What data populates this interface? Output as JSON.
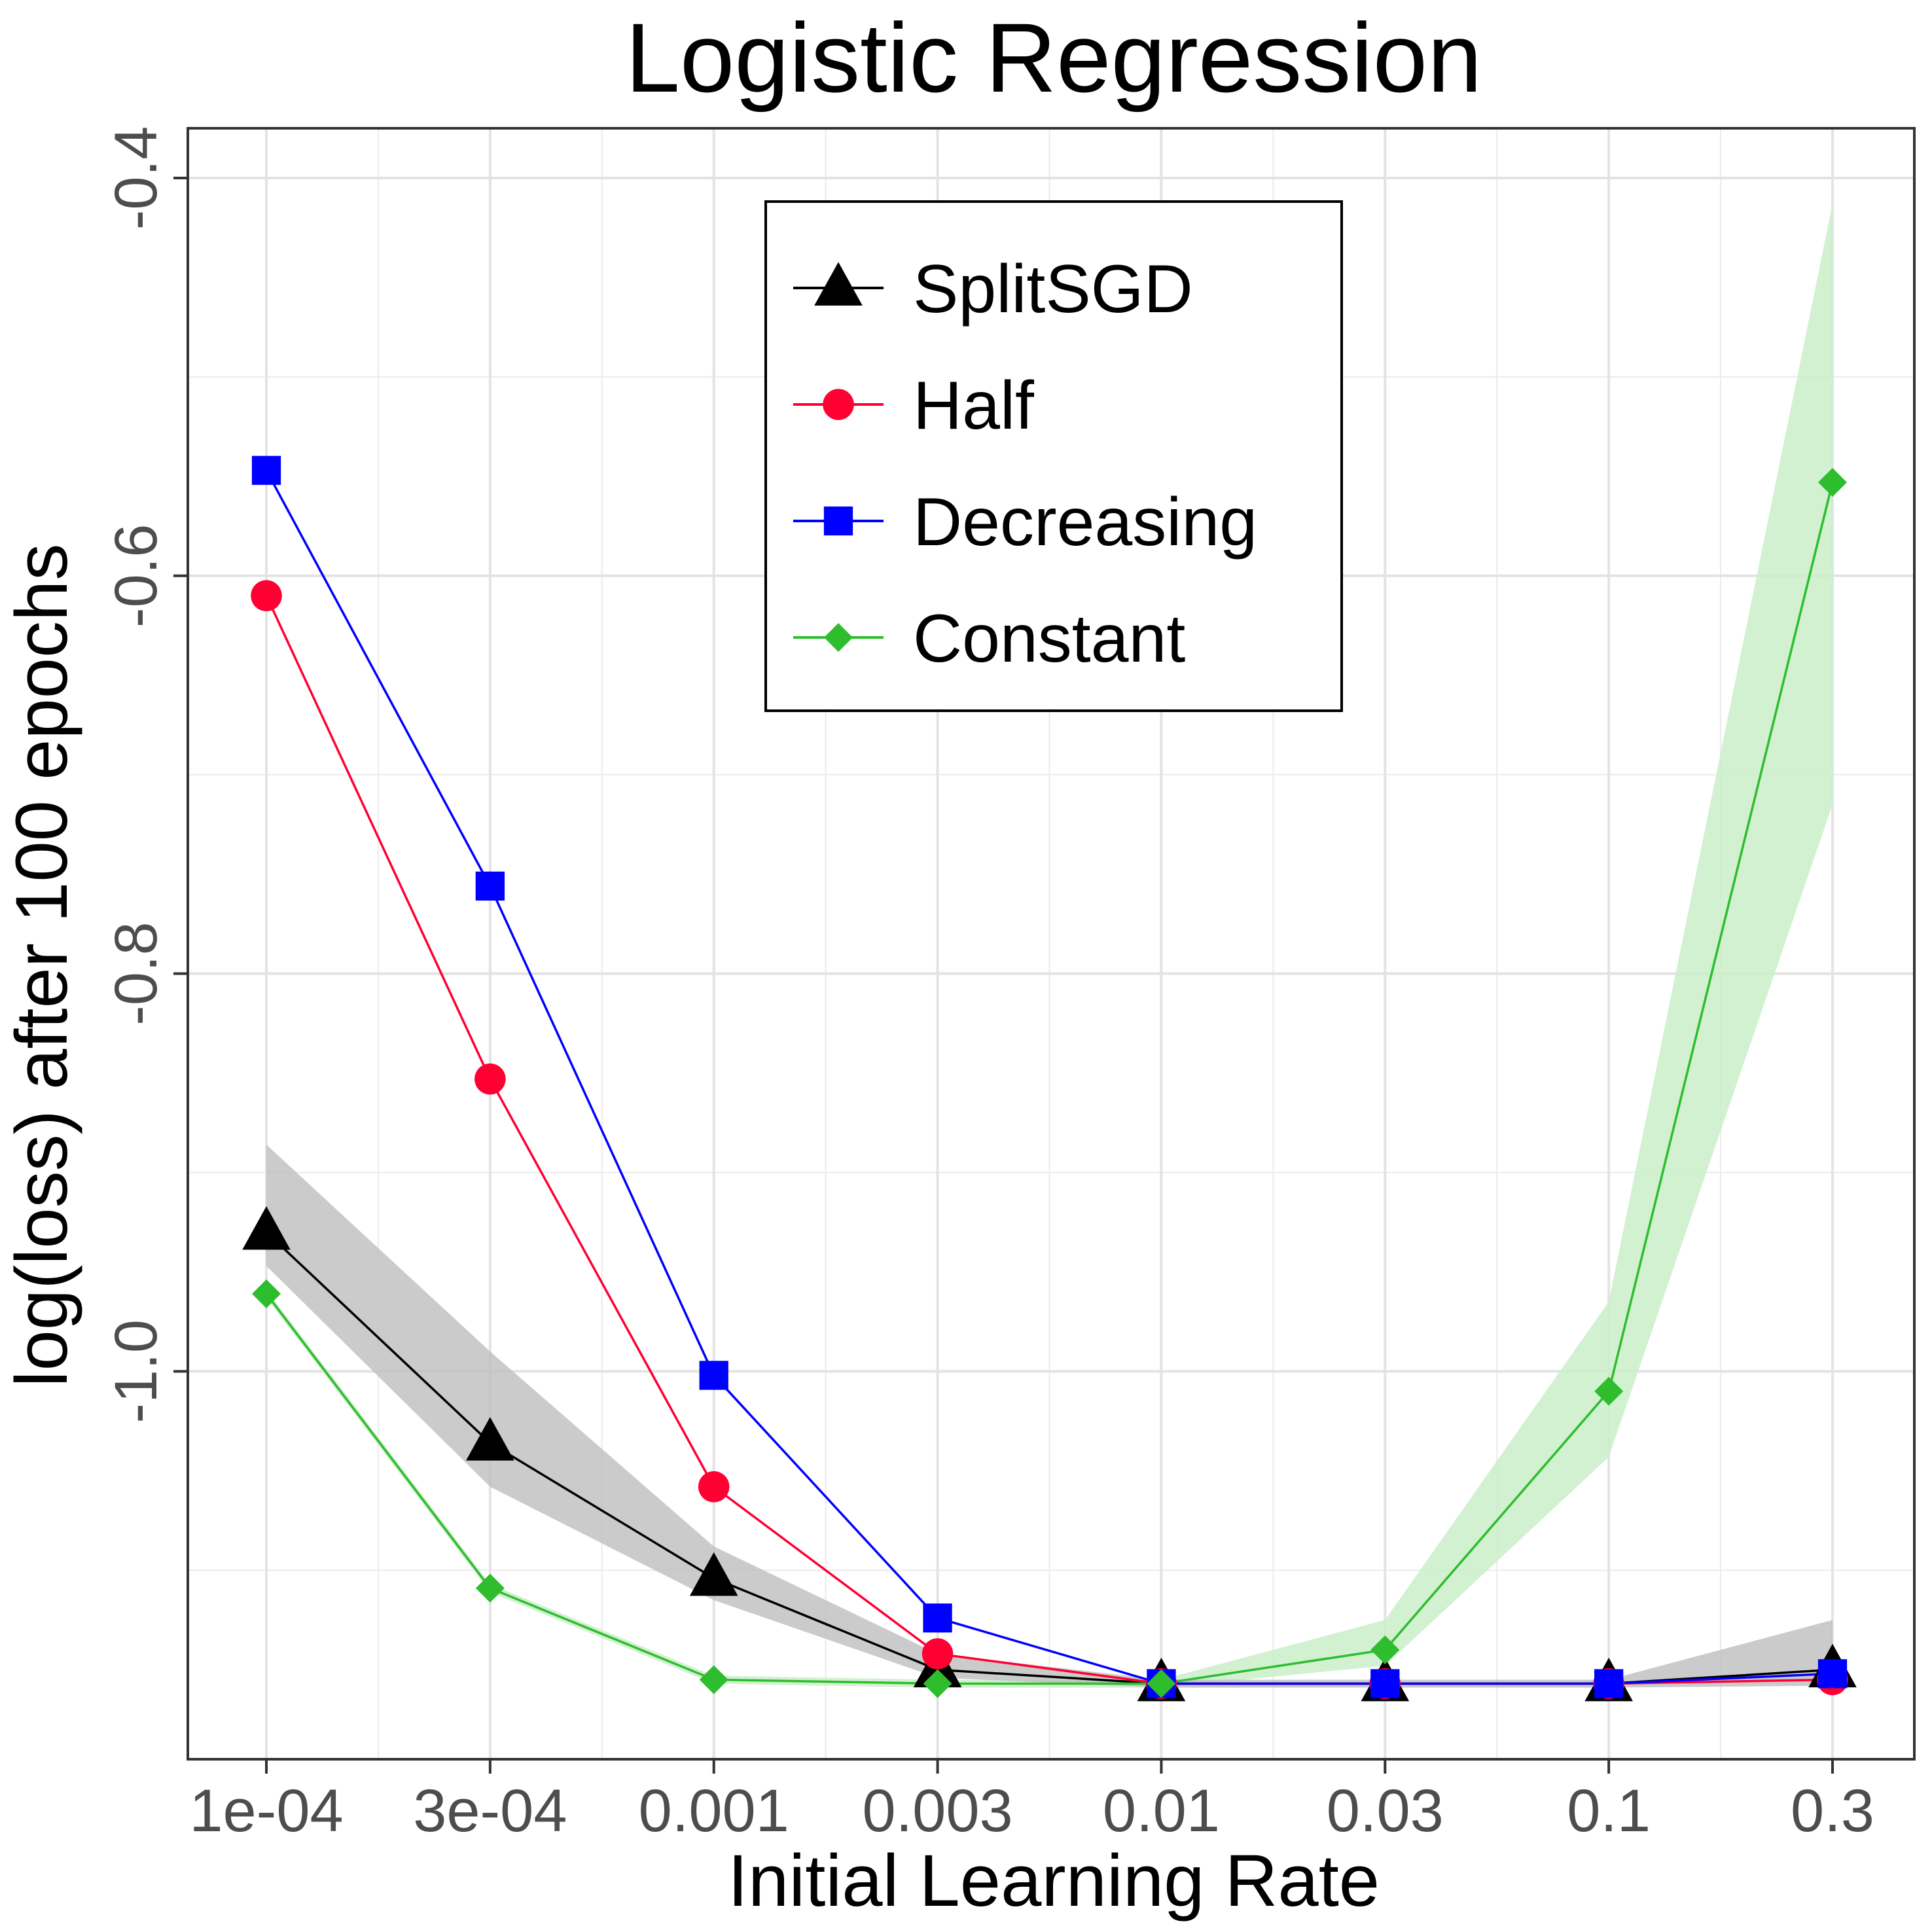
{
  "chart_data": {
    "type": "line",
    "title": "Logistic Regression",
    "xlabel": "Initial Learning Rate",
    "ylabel": "log(loss) after 100 epochs",
    "categories": [
      "1e-04",
      "3e-04",
      "0.001",
      "0.003",
      "0.01",
      "0.03",
      "0.1",
      "0.3"
    ],
    "yticks": [
      -1.0,
      -0.8,
      -0.6,
      -0.4
    ],
    "ytick_labels": [
      "-1.0",
      "-0.8",
      "-0.6",
      "-0.4"
    ],
    "ylim": [
      -1.195,
      -0.375
    ],
    "grid": true,
    "legend_position": "top-center",
    "series": [
      {
        "name": "SplitSGD",
        "color": "#000000",
        "band_color": "#bebebe",
        "marker": "triangle",
        "values": [
          -0.93,
          -1.036,
          -1.104,
          -1.15,
          -1.157,
          -1.157,
          -1.157,
          -1.15
        ],
        "lower": [
          -0.947,
          -1.058,
          -1.115,
          -1.154,
          -1.159,
          -1.159,
          -1.159,
          -1.158
        ],
        "upper": [
          -0.886,
          -0.99,
          -1.088,
          -1.142,
          -1.155,
          -1.155,
          -1.155,
          -1.125
        ]
      },
      {
        "name": "Half",
        "color": "#ff0033",
        "marker": "circle",
        "values": [
          -0.61,
          -0.853,
          -1.058,
          -1.142,
          -1.157,
          -1.157,
          -1.157,
          -1.155
        ]
      },
      {
        "name": "Decreasing",
        "color": "#0000ff",
        "marker": "square",
        "values": [
          -0.547,
          -0.756,
          -1.002,
          -1.124,
          -1.157,
          -1.157,
          -1.157,
          -1.152
        ]
      },
      {
        "name": "Constant",
        "color": "#2dbd2d",
        "band_color": "#c9efc9",
        "marker": "diamond",
        "values": [
          -0.961,
          -1.109,
          -1.155,
          -1.157,
          -1.157,
          -1.14,
          -1.01,
          -0.553
        ],
        "lower": [
          -0.963,
          -1.111,
          -1.157,
          -1.159,
          -1.159,
          -1.148,
          -1.043,
          -0.715
        ],
        "upper": [
          -0.959,
          -1.107,
          -1.153,
          -1.155,
          -1.155,
          -1.125,
          -0.965,
          -0.413
        ]
      }
    ]
  }
}
